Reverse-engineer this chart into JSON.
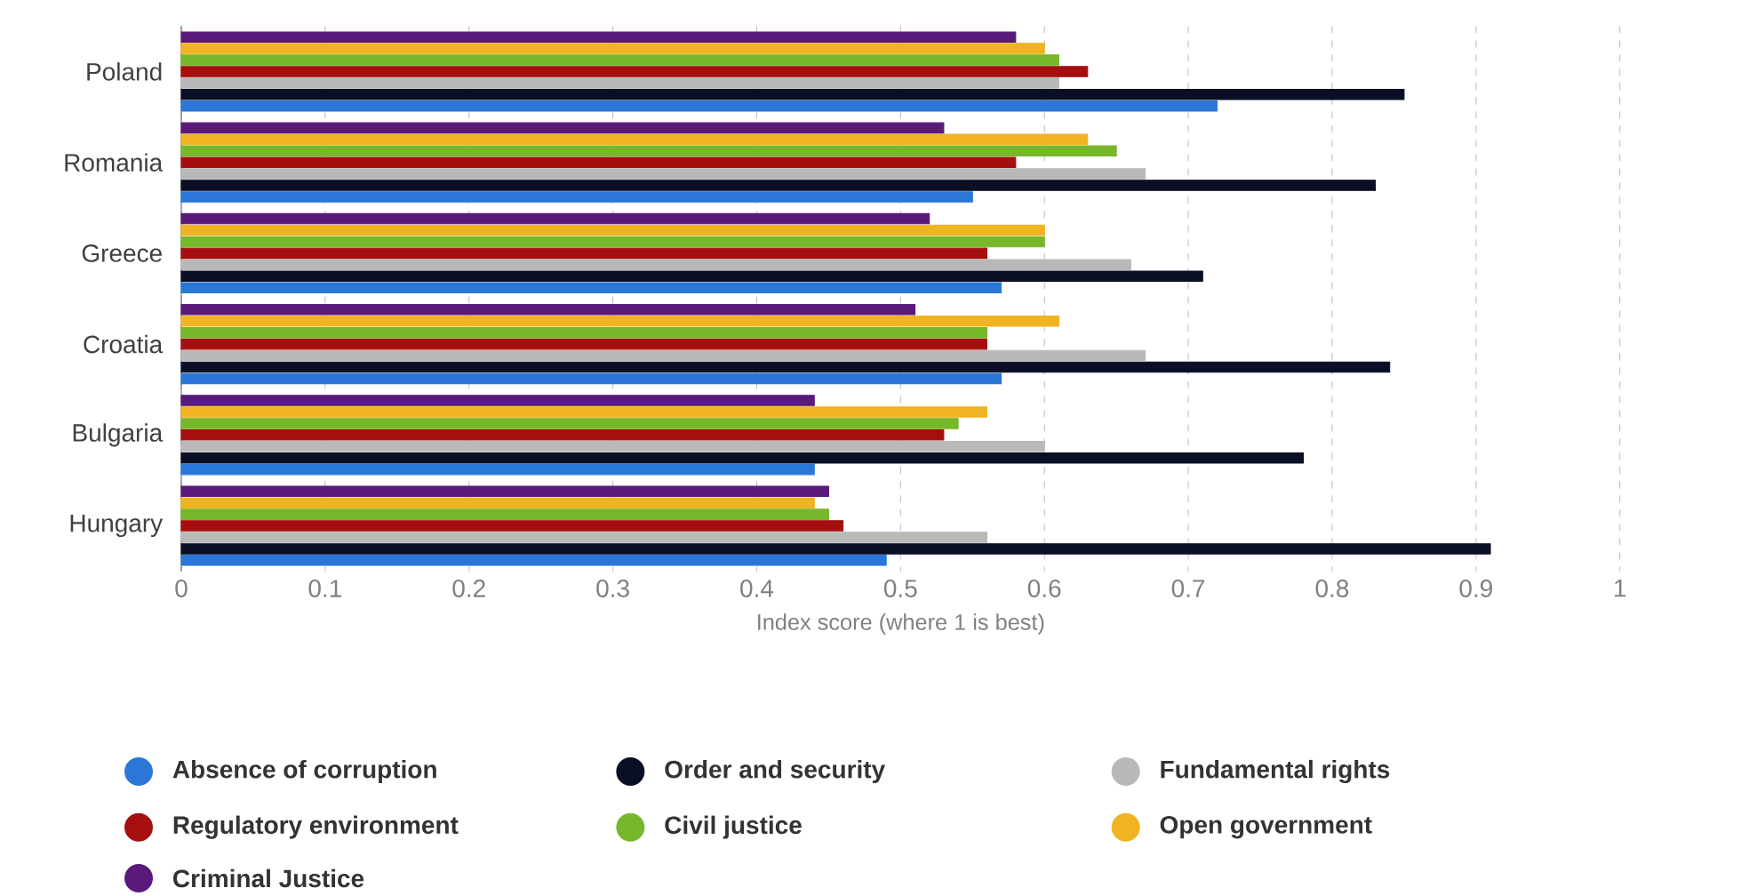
{
  "chart_data": {
    "type": "bar",
    "orientation": "horizontal",
    "xlabel": "Index score (where 1 is best)",
    "categories": [
      "Poland",
      "Romania",
      "Greece",
      "Croatia",
      "Bulgaria",
      "Hungary"
    ],
    "series": [
      {
        "name": "Absence of corruption",
        "color": "#2a77d8",
        "values": [
          0.72,
          0.55,
          0.57,
          0.57,
          0.44,
          0.49
        ]
      },
      {
        "name": "Order and security",
        "color": "#0b0f26",
        "values": [
          0.85,
          0.83,
          0.71,
          0.84,
          0.78,
          0.91
        ]
      },
      {
        "name": "Fundamental rights",
        "color": "#b9b9b9",
        "values": [
          0.61,
          0.67,
          0.66,
          0.67,
          0.6,
          0.56
        ]
      },
      {
        "name": "Regulatory environment",
        "color": "#a50f0f",
        "values": [
          0.63,
          0.58,
          0.56,
          0.56,
          0.53,
          0.46
        ]
      },
      {
        "name": "Civil justice",
        "color": "#76b82a",
        "values": [
          0.61,
          0.65,
          0.6,
          0.56,
          0.54,
          0.45
        ]
      },
      {
        "name": "Open government",
        "color": "#f0b323",
        "values": [
          0.6,
          0.63,
          0.6,
          0.61,
          0.56,
          0.44
        ]
      },
      {
        "name": "Criminal Justice",
        "color": "#5a1a7a",
        "values": [
          0.58,
          0.53,
          0.52,
          0.51,
          0.44,
          0.45
        ]
      }
    ],
    "xlim": [
      0,
      1
    ],
    "xticks": [
      0,
      0.1,
      0.2,
      0.3,
      0.4,
      0.5,
      0.6,
      0.7,
      0.8,
      0.9,
      1
    ],
    "grid": "x",
    "legend": "bottom"
  }
}
